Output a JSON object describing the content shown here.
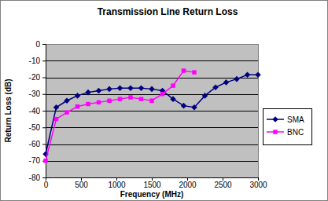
{
  "chart_data": {
    "type": "line",
    "title": "Transmission Line Return Loss",
    "x_label": "Frequency (MHz)",
    "y_label": "Return Loss (dB)",
    "x": [
      0,
      150,
      300,
      450,
      600,
      750,
      900,
      1050,
      1200,
      1350,
      1500,
      1650,
      1800,
      1950,
      2100,
      2250,
      2400,
      2550,
      2700,
      2850,
      3000
    ],
    "series": [
      {
        "name": "SMA",
        "color": "#000080",
        "marker": "diamond",
        "line_style": "solid",
        "values": [
          -66,
          -38,
          -34,
          -31,
          -29,
          -28,
          -27,
          -26.5,
          -26.5,
          -26.5,
          -27,
          -28,
          -33,
          -37,
          -38,
          -31,
          -26,
          -23,
          -21,
          -18.5,
          -18.5
        ]
      },
      {
        "name": "BNC",
        "color": "#ff00ff",
        "marker": "square",
        "line_style": "solid",
        "values": [
          -70,
          -45,
          -41,
          -37.5,
          -36,
          -35,
          -34,
          -33,
          -32,
          -33,
          -34,
          -30,
          -25,
          -16,
          -17,
          null,
          null,
          null,
          null,
          null,
          null
        ]
      }
    ],
    "xlim": [
      0,
      3000
    ],
    "xticks": [
      0,
      500,
      1000,
      1500,
      2000,
      2500,
      3000
    ],
    "ylim": [
      -80,
      0
    ],
    "yticks": [
      -80,
      -70,
      -60,
      -50,
      -40,
      -30,
      -20,
      -10,
      0
    ],
    "grid": true,
    "legend": "right"
  }
}
